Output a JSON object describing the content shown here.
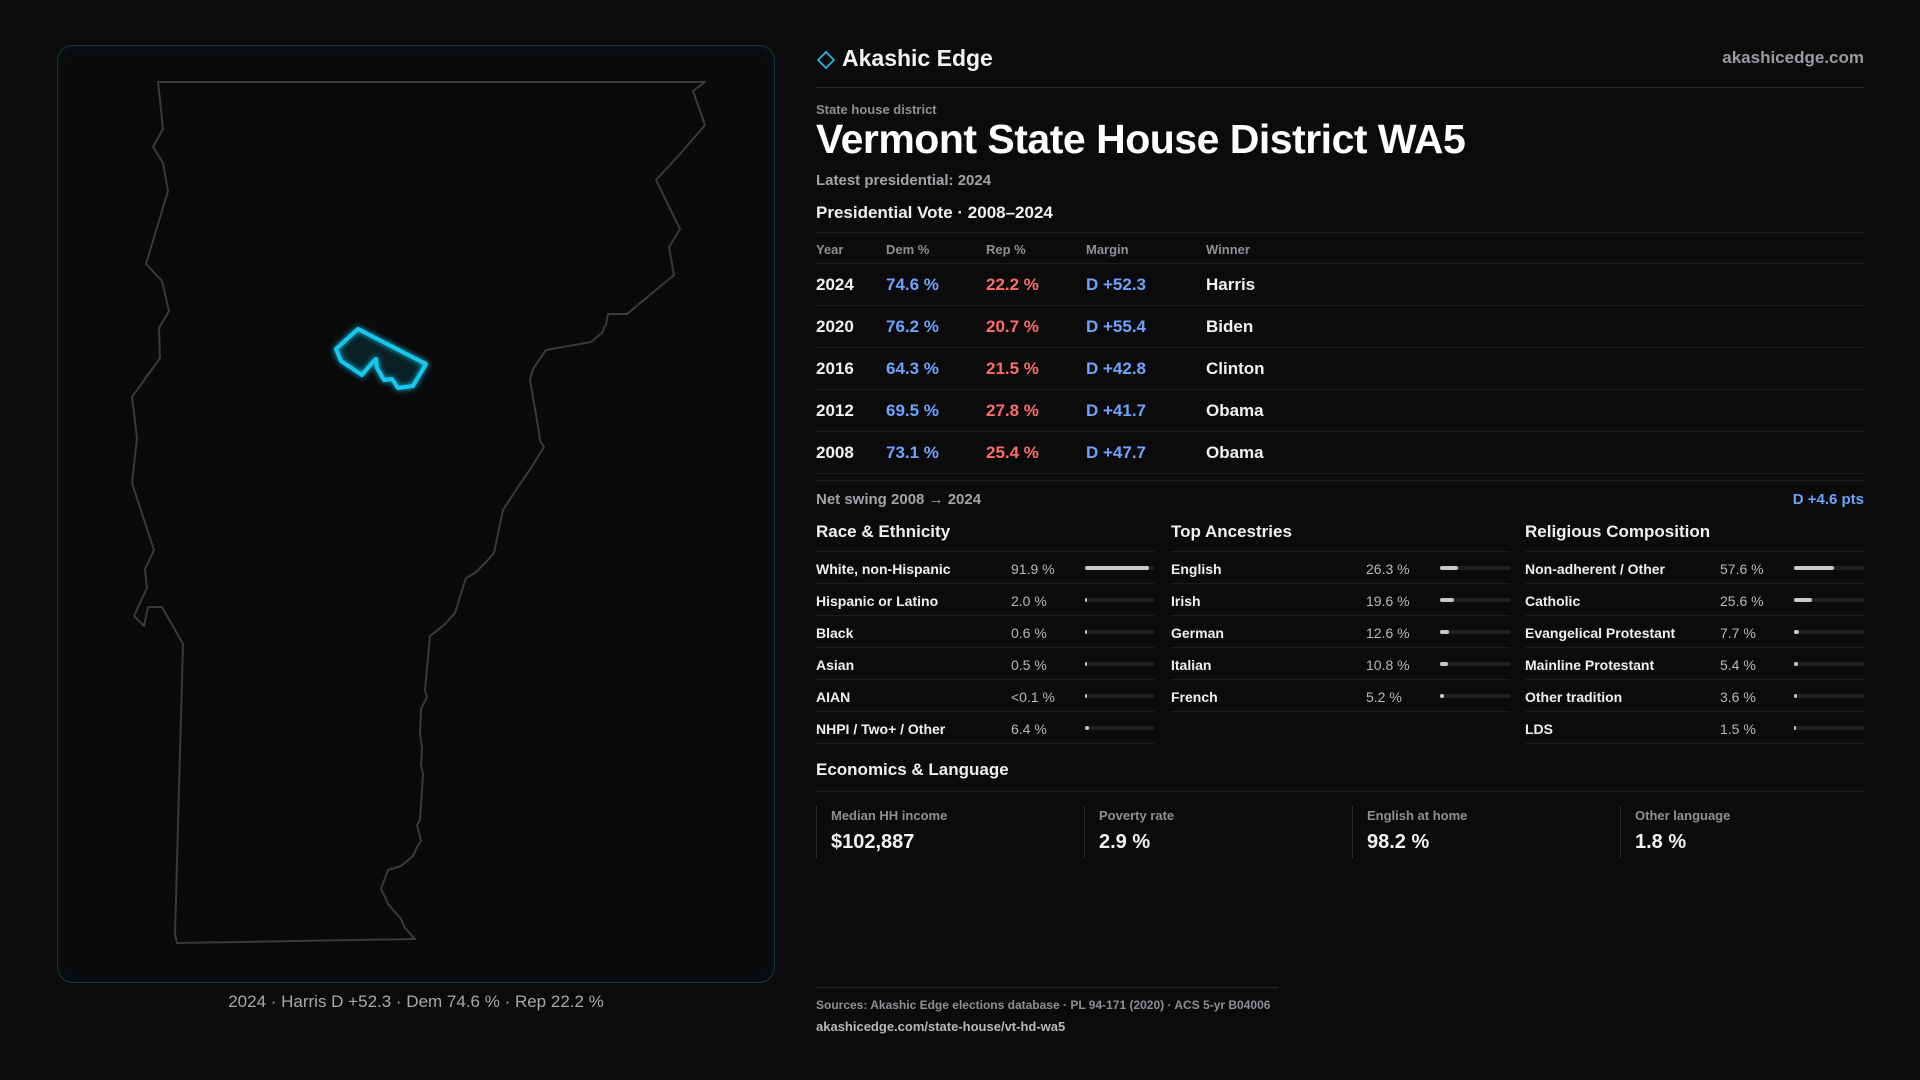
{
  "brand": {
    "name": "Akashic Edge",
    "url": "akashicedge.com"
  },
  "header": {
    "kicker": "State house district",
    "title": "Vermont  State House District WA5",
    "latest": "Latest presidential: 2024"
  },
  "vote": {
    "heading": "Presidential Vote · 2008–2024",
    "columns": {
      "year": "Year",
      "dem": "Dem %",
      "rep": "Rep %",
      "margin": "Margin",
      "winner": "Winner"
    },
    "rows": [
      {
        "year": "2024",
        "dem": "74.6 %",
        "rep": "22.2 %",
        "margin": "D +52.3",
        "winner": "Harris"
      },
      {
        "year": "2020",
        "dem": "76.2 %",
        "rep": "20.7 %",
        "margin": "D +55.4",
        "winner": "Biden"
      },
      {
        "year": "2016",
        "dem": "64.3 %",
        "rep": "21.5 %",
        "margin": "D +42.8",
        "winner": "Clinton"
      },
      {
        "year": "2012",
        "dem": "69.5 %",
        "rep": "27.8 %",
        "margin": "D +41.7",
        "winner": "Obama"
      },
      {
        "year": "2008",
        "dem": "73.1 %",
        "rep": "25.4 %",
        "margin": "D +47.7",
        "winner": "Obama"
      }
    ],
    "swing_label": "Net swing 2008 → 2024",
    "swing_value": "D +4.6 pts"
  },
  "race": {
    "heading": "Race & Ethnicity",
    "rows": [
      {
        "label": "White, non-Hispanic",
        "value": "91.9 %",
        "share": 0.919
      },
      {
        "label": "Hispanic or Latino",
        "value": "2.0 %",
        "share": 0.02
      },
      {
        "label": "Black",
        "value": "0.6 %",
        "share": 0.006
      },
      {
        "label": "Asian",
        "value": "0.5 %",
        "share": 0.005
      },
      {
        "label": "AIAN",
        "value": "<0.1 %",
        "share": 0.0
      },
      {
        "label": "NHPI / Two+ / Other",
        "value": "6.4 %",
        "share": 0.064
      }
    ]
  },
  "ancestry": {
    "heading": "Top Ancestries",
    "rows": [
      {
        "label": "English",
        "value": "26.3 %",
        "share": 0.263
      },
      {
        "label": "Irish",
        "value": "19.6 %",
        "share": 0.196
      },
      {
        "label": "German",
        "value": "12.6 %",
        "share": 0.126
      },
      {
        "label": "Italian",
        "value": "10.8 %",
        "share": 0.108
      },
      {
        "label": "French",
        "value": "5.2 %",
        "share": 0.052
      }
    ]
  },
  "religion": {
    "heading": "Religious Composition",
    "rows": [
      {
        "label": "Non-adherent / Other",
        "value": "57.6 %",
        "share": 0.576
      },
      {
        "label": "Catholic",
        "value": "25.6 %",
        "share": 0.256
      },
      {
        "label": "Evangelical Protestant",
        "value": "7.7 %",
        "share": 0.077
      },
      {
        "label": "Mainline Protestant",
        "value": "5.4 %",
        "share": 0.054
      },
      {
        "label": "Other tradition",
        "value": "3.6 %",
        "share": 0.036
      },
      {
        "label": "LDS",
        "value": "1.5 %",
        "share": 0.015
      }
    ]
  },
  "economics": {
    "heading": "Economics & Language",
    "cards": [
      {
        "label": "Median HH income",
        "value": "$102,887"
      },
      {
        "label": "Poverty rate",
        "value": "2.9 %"
      },
      {
        "label": "English at home",
        "value": "98.2 %"
      },
      {
        "label": "Other language",
        "value": "1.8 %"
      }
    ]
  },
  "map": {
    "caption": "2024 · Harris D +52.3 · Dem 74.6 % · Rep 22.2 %",
    "state_outline_color": "#3a3a3e",
    "district_color": "#18c8ee"
  },
  "sources": {
    "line": "Sources: Akashic Edge elections database · PL 94-171 (2020) · ACS 5-yr B04006",
    "url": "akashicedge.com/state-house/vt-hd-wa5"
  }
}
